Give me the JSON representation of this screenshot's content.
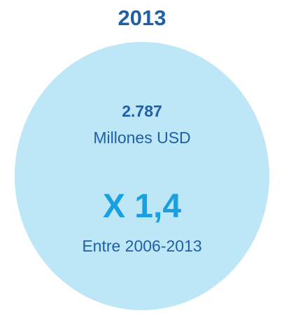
{
  "colors": {
    "primary": "#1f5fa8",
    "accent": "#1a9fe0",
    "circle_fill": "#bde7f7"
  },
  "year": "2013",
  "amount": "2.787",
  "unit": "Millones USD",
  "multiplier": "X 1,4",
  "period": "Entre 2006-2013"
}
